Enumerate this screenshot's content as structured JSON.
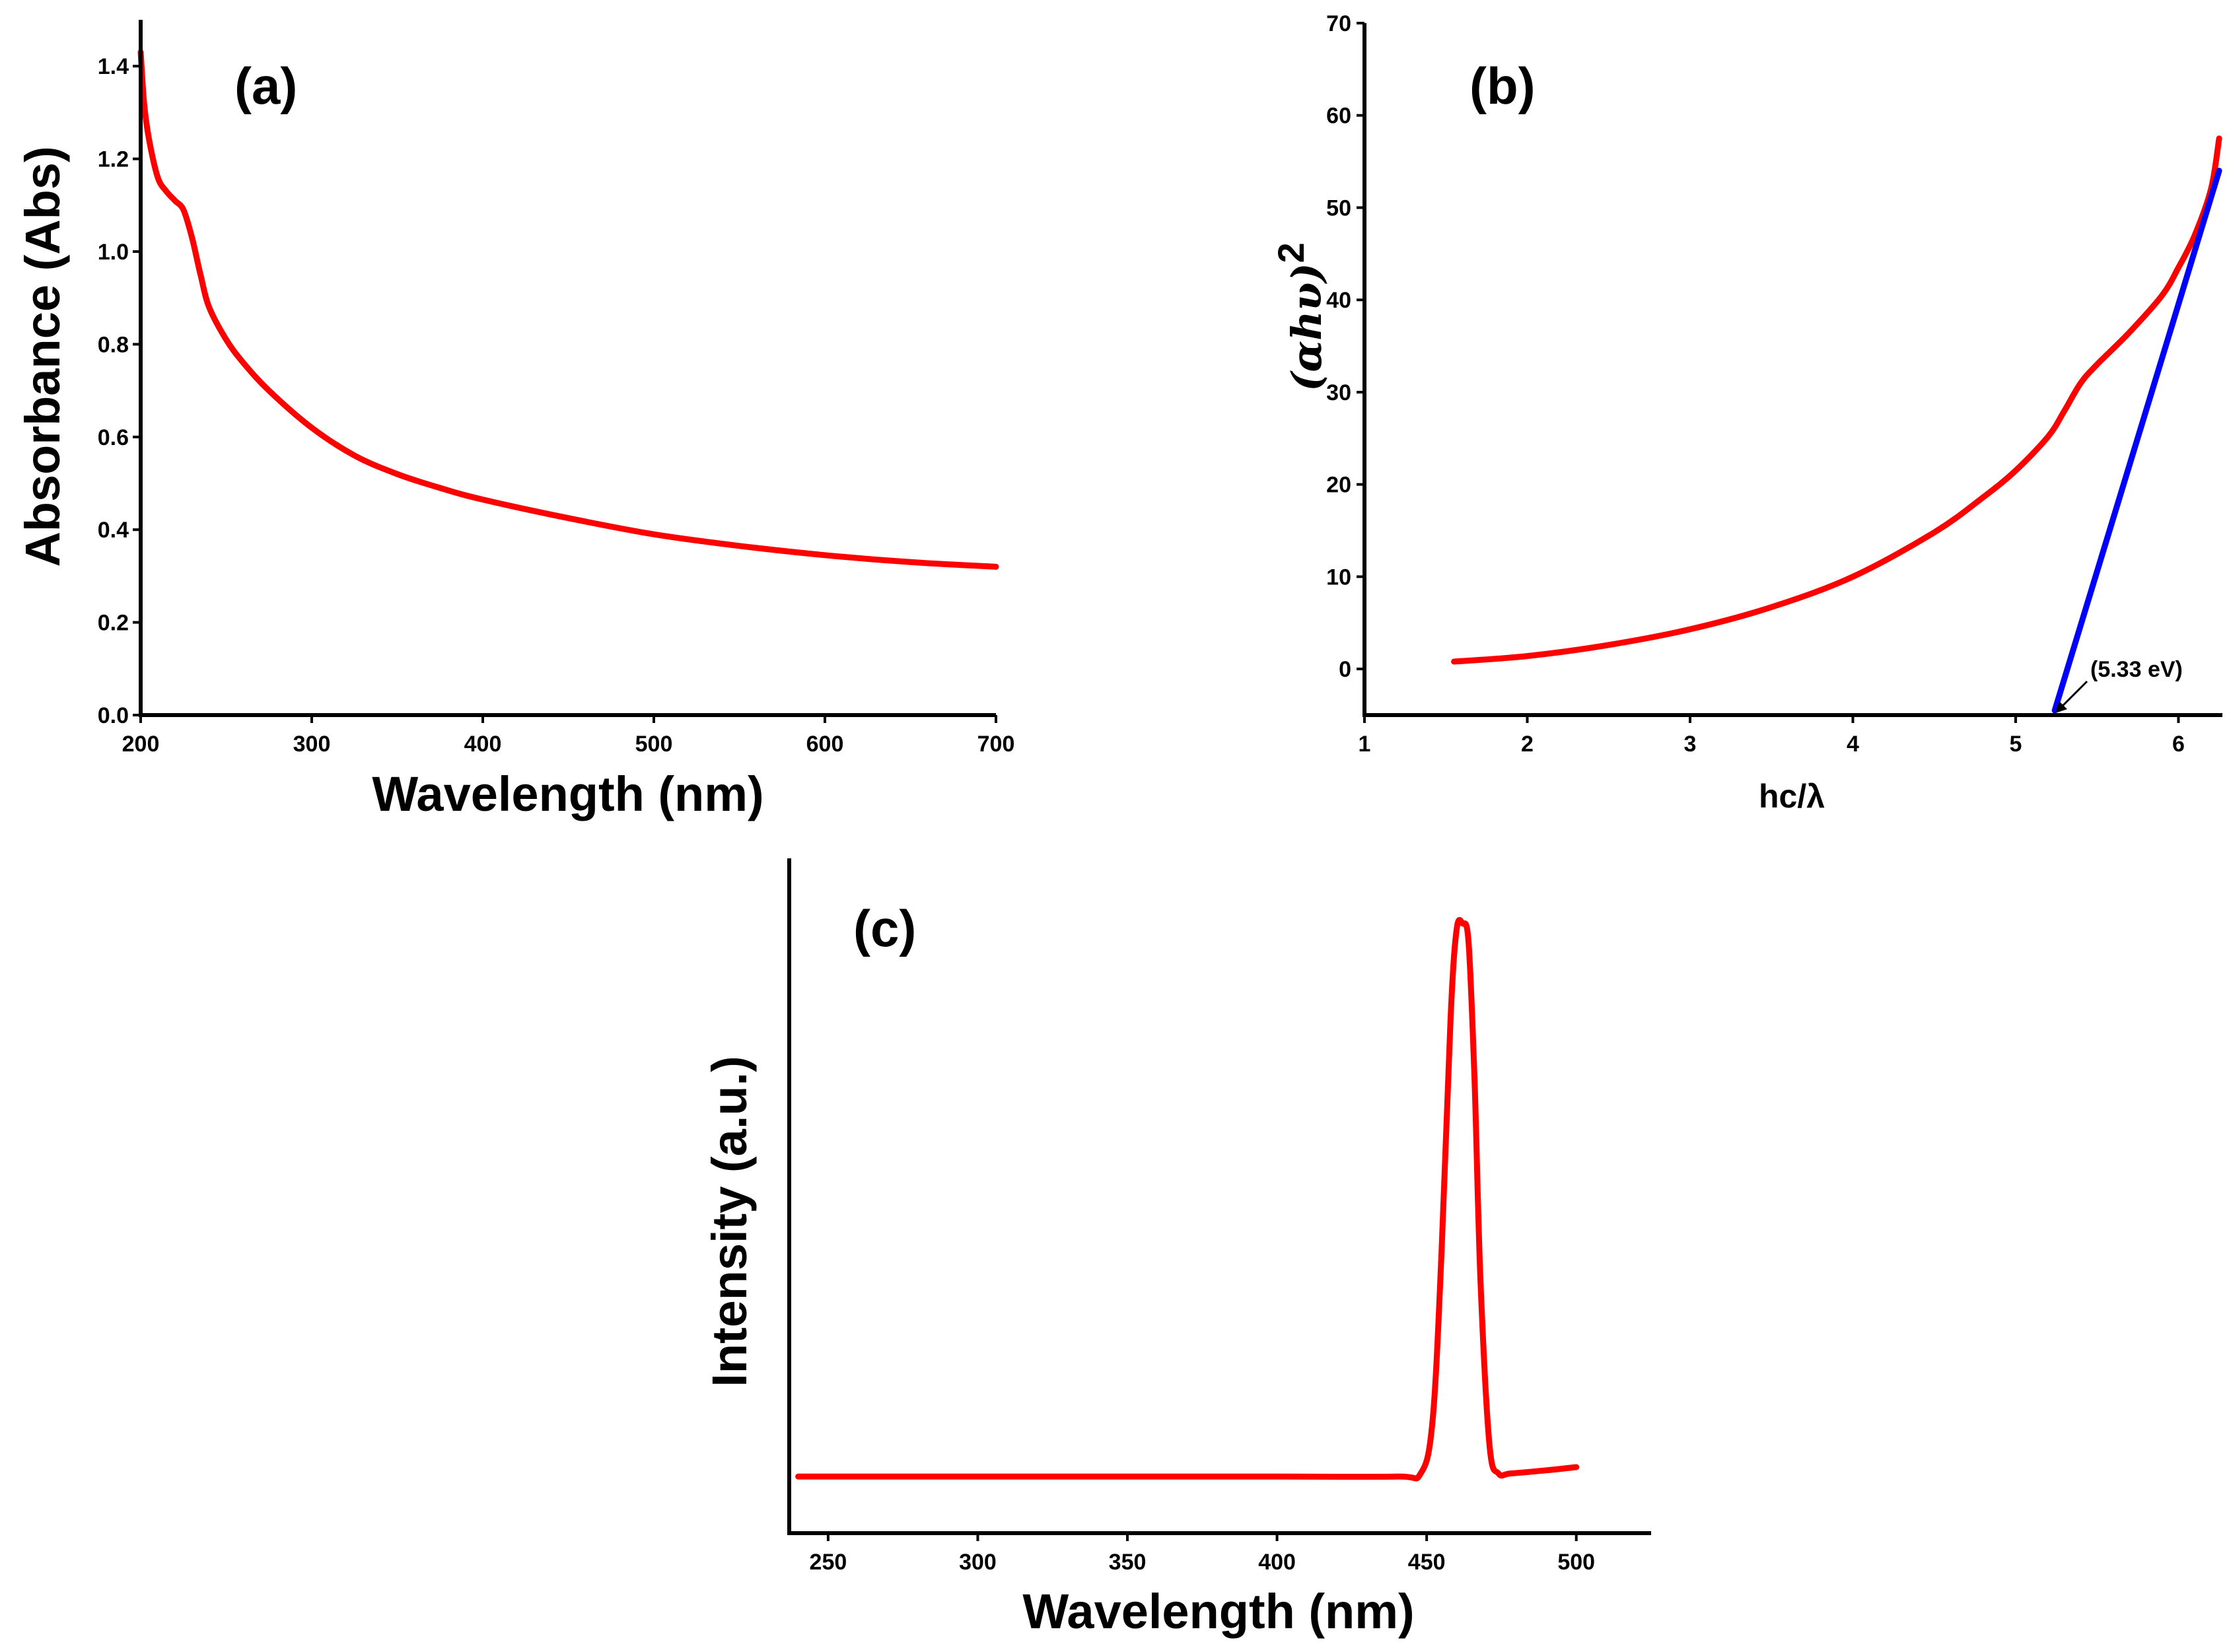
{
  "chart_data": [
    {
      "id": "a",
      "type": "line",
      "panel_label": "(a)",
      "xlabel": "Wavelength (nm)",
      "ylabel": "Absorbance (Abs)",
      "xlim": [
        200,
        700
      ],
      "ylim": [
        0.0,
        1.5
      ],
      "xticks": [
        200,
        300,
        400,
        500,
        600,
        700
      ],
      "yticks": [
        0.0,
        0.2,
        0.4,
        0.6,
        0.8,
        1.0,
        1.2,
        1.4
      ],
      "ytick_labels": [
        "0.0",
        "0.2",
        "0.4",
        "0.6",
        "0.8",
        "1.0",
        "1.2",
        "1.4"
      ],
      "color": "#ff0000",
      "series": [
        {
          "name": "Absorbance",
          "x": [
            200,
            202,
            205,
            210,
            215,
            220,
            225,
            230,
            235,
            240,
            250,
            260,
            275,
            300,
            325,
            350,
            375,
            400,
            450,
            500,
            550,
            600,
            650,
            700
          ],
          "y": [
            1.43,
            1.32,
            1.24,
            1.16,
            1.13,
            1.11,
            1.09,
            1.03,
            0.95,
            0.88,
            0.81,
            0.76,
            0.7,
            0.62,
            0.56,
            0.52,
            0.49,
            0.465,
            0.425,
            0.39,
            0.365,
            0.345,
            0.33,
            0.32
          ]
        }
      ]
    },
    {
      "id": "b",
      "type": "line",
      "panel_label": "(b)",
      "xlabel": "hc/λ",
      "ylabel_main": "(αhυ)",
      "ylabel_sup": "2",
      "xlim": [
        1,
        6.27
      ],
      "ylim": [
        -5,
        70
      ],
      "xticks": [
        1,
        2,
        3,
        4,
        5,
        6
      ],
      "yticks": [
        0,
        10,
        20,
        30,
        40,
        50,
        60,
        70
      ],
      "annotation": "(5.33 eV)",
      "series": [
        {
          "name": "(αhυ)^2",
          "color": "#ff0000",
          "x": [
            1.55,
            2.0,
            2.5,
            3.0,
            3.5,
            4.0,
            4.5,
            4.8,
            5.0,
            5.2,
            5.3,
            5.4,
            5.5,
            5.7,
            5.9,
            6.0,
            6.1,
            6.2,
            6.25
          ],
          "y": [
            0.8,
            1.4,
            2.6,
            4.3,
            6.7,
            10.0,
            14.8,
            18.6,
            21.5,
            25.2,
            28.0,
            31.0,
            33.0,
            36.5,
            40.5,
            43.5,
            47.0,
            52.0,
            57.5
          ]
        },
        {
          "name": "Tauc fit",
          "color": "#0000ff",
          "x": [
            5.24,
            6.25
          ],
          "y": [
            -4.5,
            54.0
          ]
        }
      ]
    },
    {
      "id": "c",
      "type": "line",
      "panel_label": "(c)",
      "xlabel": "Wavelength (nm)",
      "ylabel": "Intensity (a.u.)",
      "xlim": [
        237,
        525
      ],
      "ylim": [
        0,
        1
      ],
      "xticks": [
        250,
        300,
        350,
        400,
        450,
        500
      ],
      "color": "#ff0000",
      "series": [
        {
          "name": "Intensity",
          "x": [
            240,
            300,
            350,
            400,
            440,
            448,
            452,
            455,
            458,
            460,
            462,
            464,
            466,
            468,
            471,
            474,
            478,
            490,
            500
          ],
          "y": [
            0.09,
            0.09,
            0.09,
            0.09,
            0.09,
            0.095,
            0.18,
            0.45,
            0.82,
            0.96,
            0.97,
            0.94,
            0.72,
            0.4,
            0.14,
            0.095,
            0.095,
            0.1,
            0.105
          ]
        }
      ]
    }
  ]
}
